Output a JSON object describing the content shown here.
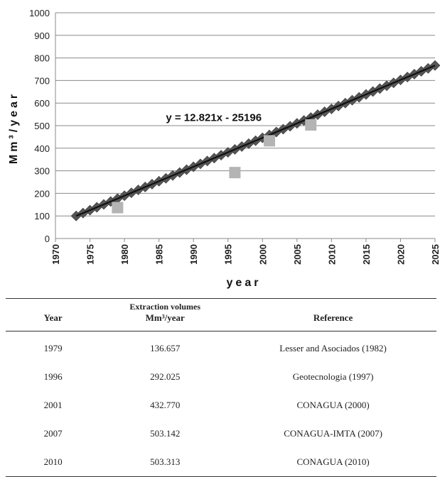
{
  "chart_data": {
    "type": "scatter",
    "ylabel": "Mm³/year",
    "xlabel": "year",
    "xlim": [
      1970,
      2025
    ],
    "ylim": [
      0,
      1000
    ],
    "xticks": [
      1970,
      1975,
      1980,
      1985,
      1990,
      1995,
      2000,
      2005,
      2010,
      2015,
      2020,
      2025
    ],
    "yticks": [
      0,
      100,
      200,
      300,
      400,
      500,
      600,
      700,
      800,
      900,
      1000
    ],
    "grid": true,
    "series": [
      {
        "kind": "points",
        "marker": "square",
        "color": "#b4b4b4",
        "points": [
          {
            "x": 1979,
            "y": 136.657
          },
          {
            "x": 1996,
            "y": 292.025
          },
          {
            "x": 2001,
            "y": 432.77
          },
          {
            "x": 2007,
            "y": 503.142
          }
        ]
      },
      {
        "kind": "trend",
        "marker": "diamond",
        "color": "#555555",
        "x_range": [
          1973,
          2025
        ],
        "slope": 12.821,
        "intercept": -25196
      }
    ],
    "annotations": [
      {
        "text": "y = 12.821x  - 25196",
        "x": 1986,
        "y": 520
      }
    ]
  },
  "table": {
    "group_header": "Extraction volumes",
    "headers": {
      "year": "Year",
      "volume": "Mm³/year",
      "reference": "Reference"
    },
    "rows": [
      {
        "year": "1979",
        "volume": "136.657",
        "reference": "Lesser and Asociados (1982)"
      },
      {
        "year": "1996",
        "volume": "292.025",
        "reference": "Geotecnologia (1997)"
      },
      {
        "year": "2001",
        "volume": "432.770",
        "reference": "CONAGUA (2000)"
      },
      {
        "year": "2007",
        "volume": "503.142",
        "reference": "CONAGUA-IMTA (2007)"
      },
      {
        "year": "2010",
        "volume": "503.313",
        "reference": "CONAGUA (2010)"
      }
    ]
  }
}
